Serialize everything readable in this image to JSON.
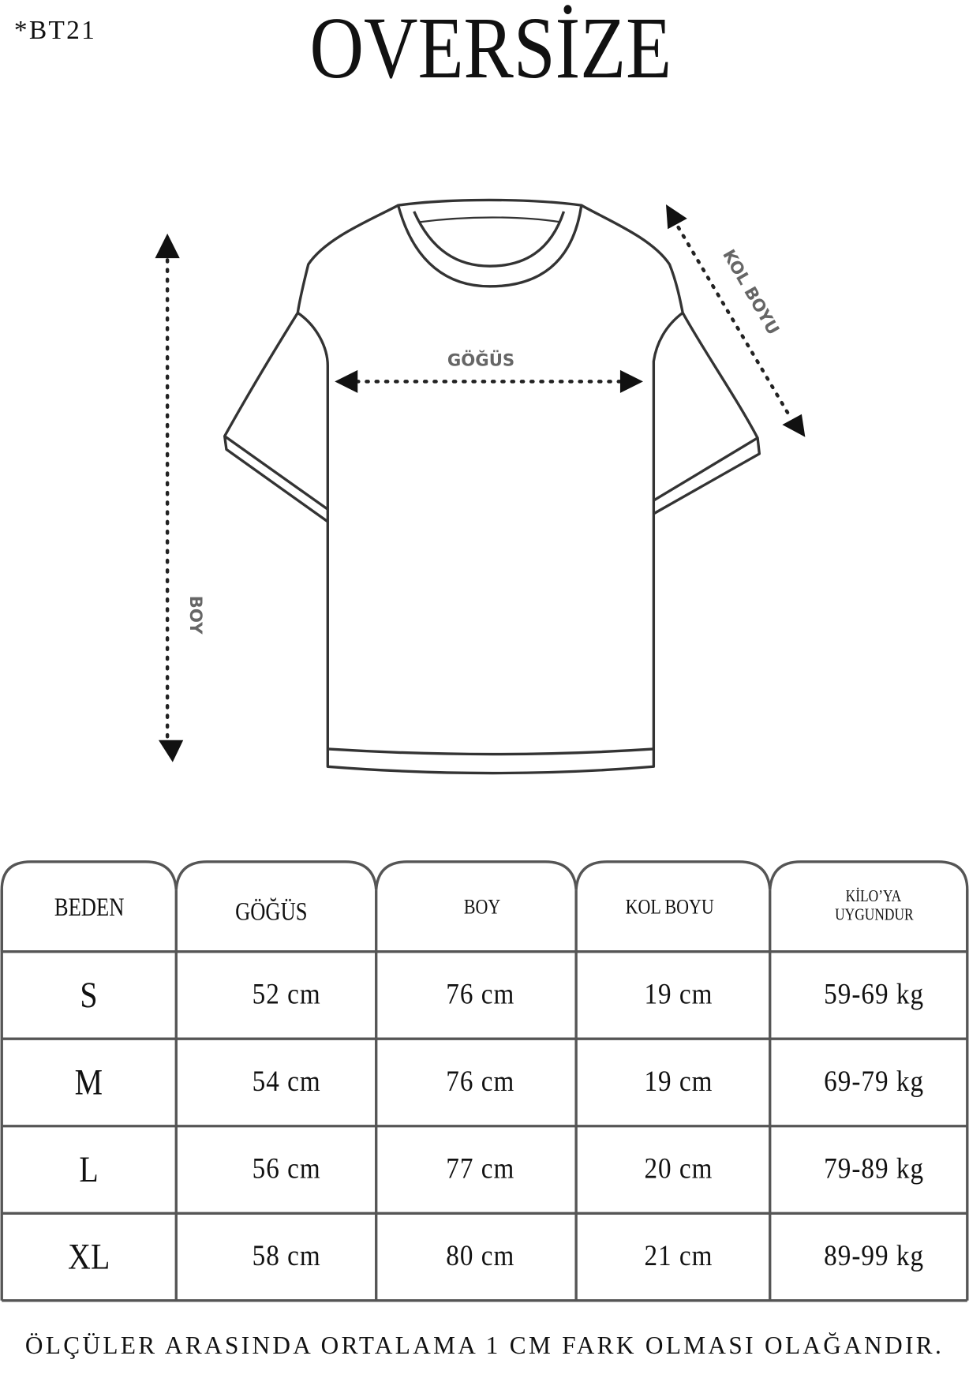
{
  "product_code": "*BT21",
  "title": "OVERSİZE",
  "diagram": {
    "chest_label": "GÖĞÜS",
    "length_label": "BOY",
    "sleeve_label": "KOL BOYU"
  },
  "table": {
    "headers": [
      "BEDEN",
      "GÖĞÜS",
      "BOY",
      "KOL BOYU",
      "KİLO’YA UYGUNDUR"
    ],
    "header_lines": {
      "weight_1": "KİLO’YA",
      "weight_2": "UYGUNDUR"
    },
    "rows": [
      {
        "size": "S",
        "chest": "52 cm",
        "length": "76 cm",
        "sleeve": "19  cm",
        "weight": "59-69 kg"
      },
      {
        "size": "M",
        "chest": "54 cm",
        "length": "76 cm",
        "sleeve": "19 cm",
        "weight": "69-79 kg"
      },
      {
        "size": "L",
        "chest": "56 cm",
        "length": "77 cm",
        "sleeve": "20 cm",
        "weight": "79-89 kg"
      },
      {
        "size": "XL",
        "chest": "58 cm",
        "length": "80 cm",
        "sleeve": "21 cm",
        "weight": "89-99 kg"
      }
    ]
  },
  "footer": "ÖLÇÜLER ARASINDA ORTALAMA 1 CM FARK OLMASI OLAĞANDIR."
}
